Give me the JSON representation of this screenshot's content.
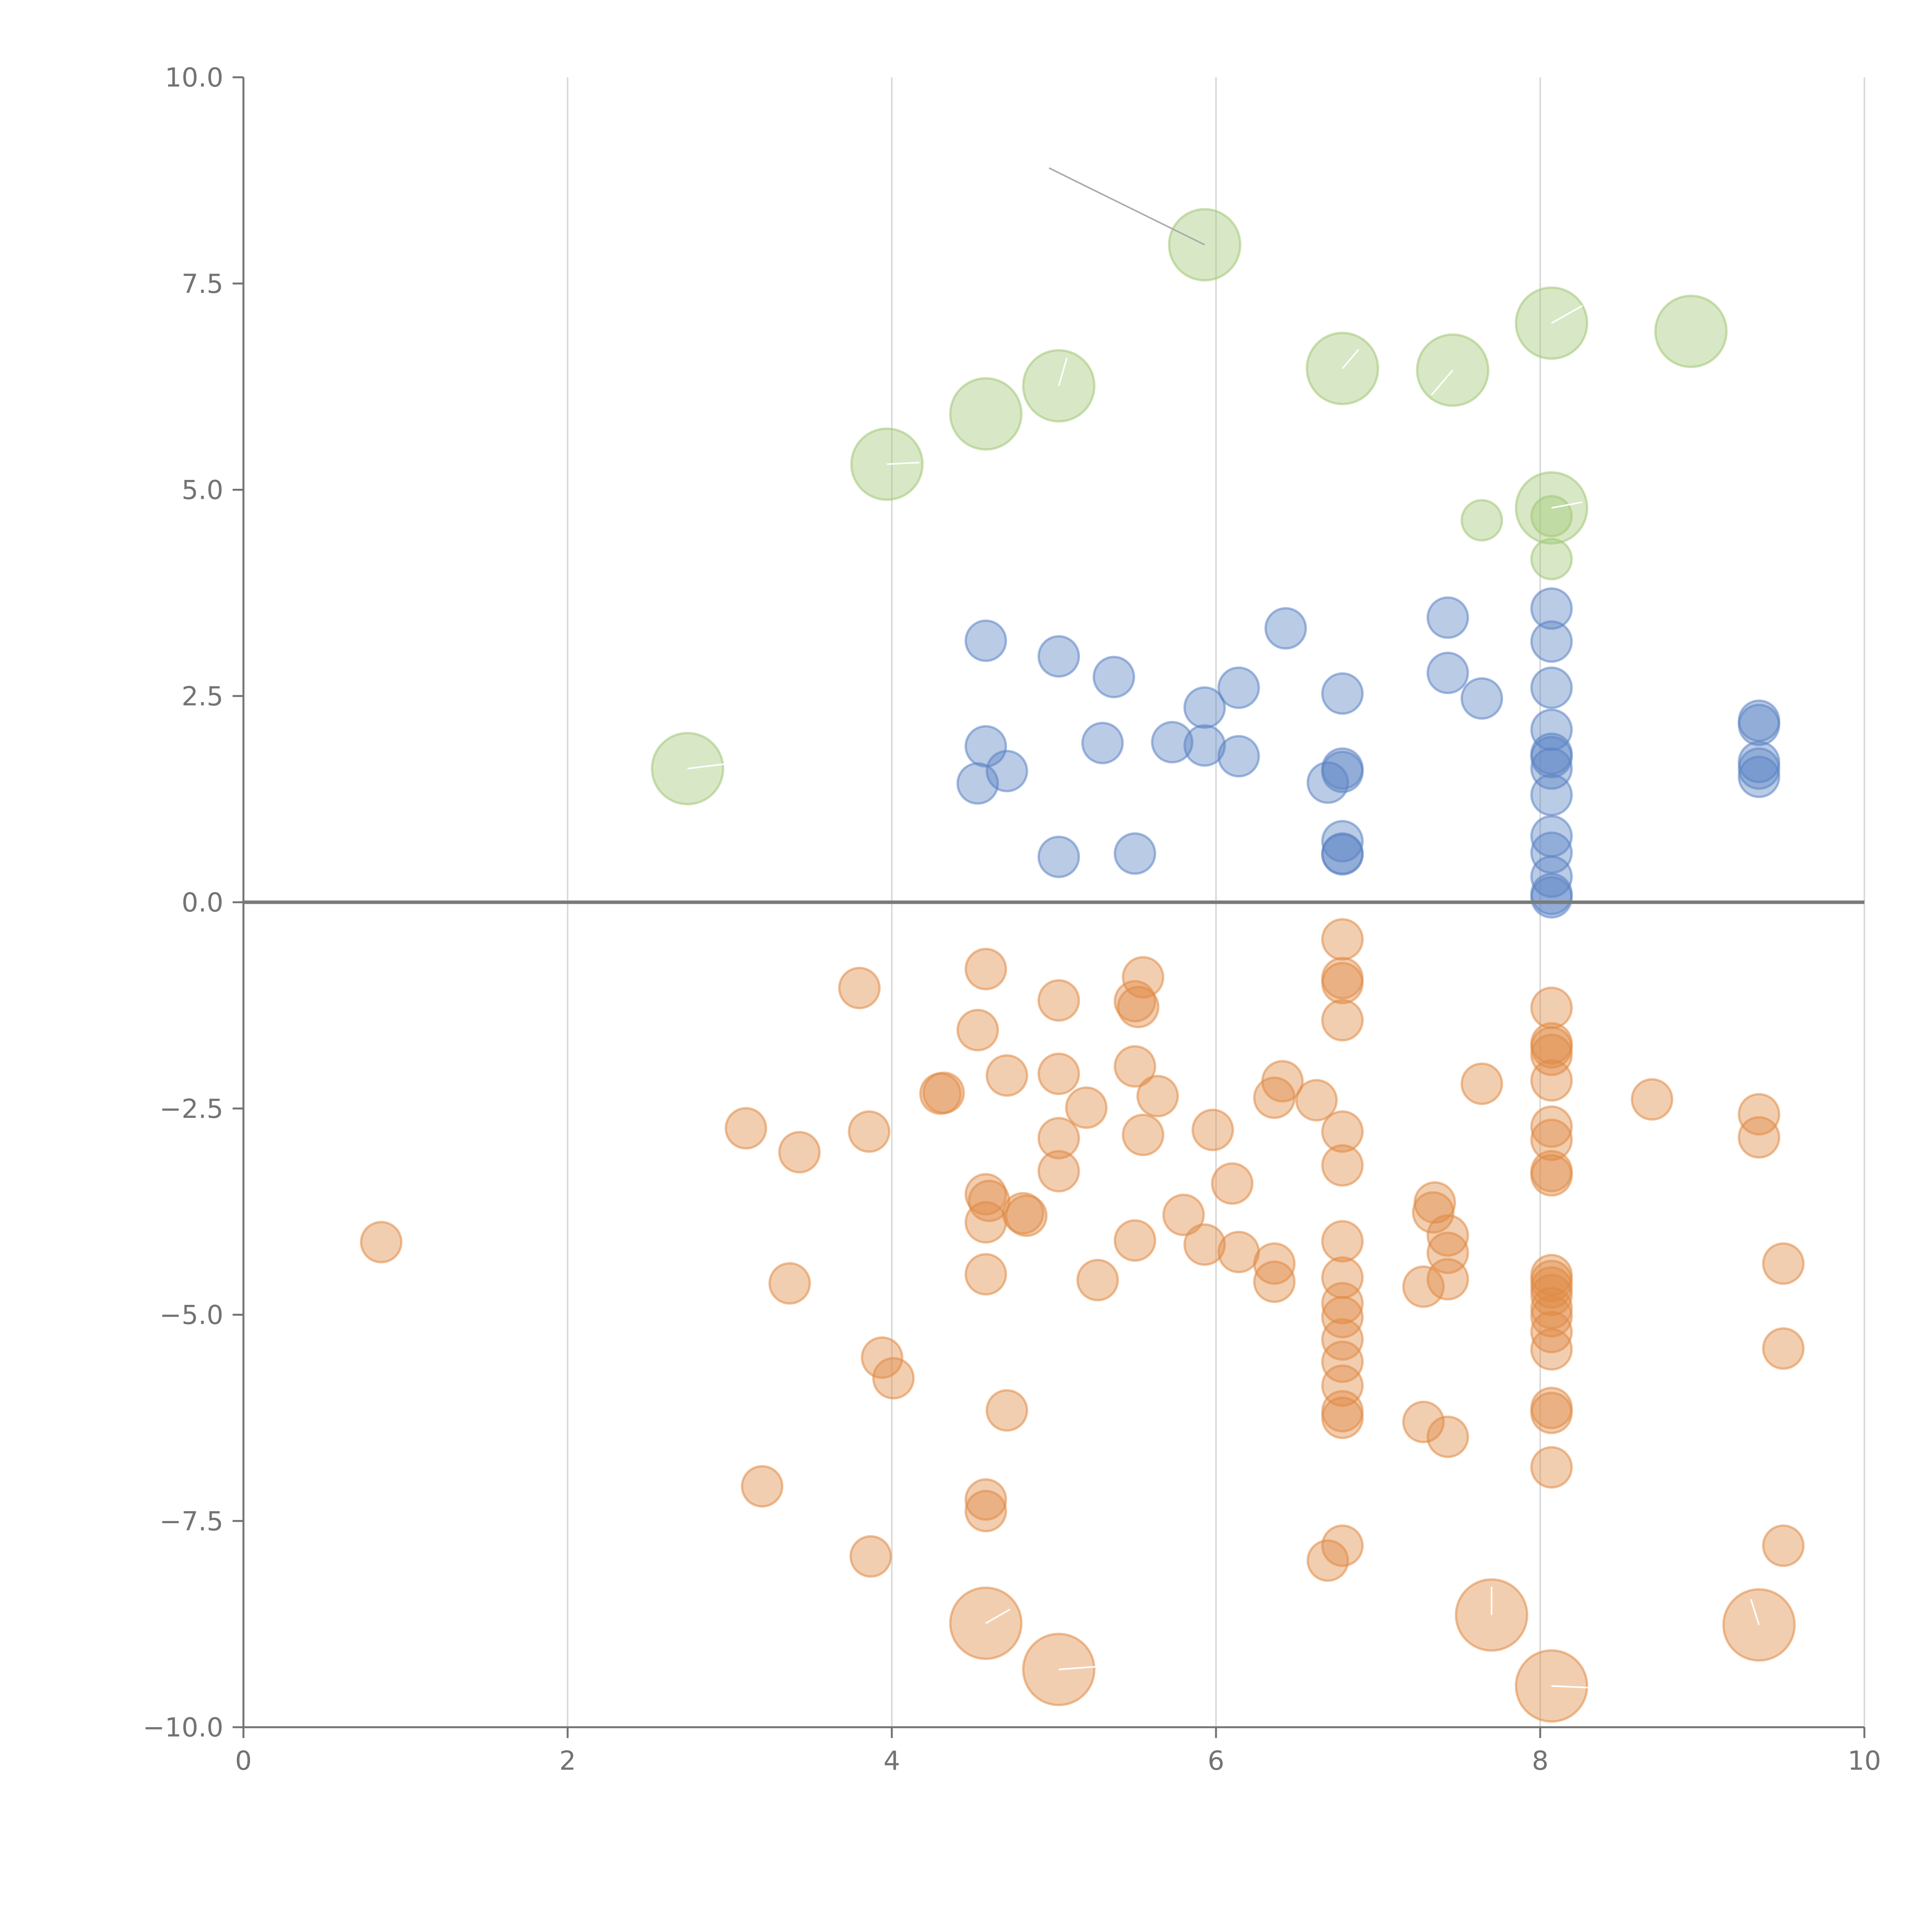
{
  "chart_data": {
    "type": "scatter",
    "title": "",
    "xlabel": "",
    "ylabel": "",
    "xlim": [
      0,
      10
    ],
    "ylim": [
      -10,
      10
    ],
    "grid": {
      "x": true,
      "y": false
    },
    "legend": "none",
    "x_ticks": [
      "0",
      "2",
      "4",
      "6",
      "8",
      "10"
    ],
    "y_ticks": [
      "10.0",
      "7.5",
      "5.0",
      "2.5",
      "0.0",
      "−2.5",
      "−5.0",
      "−7.5",
      "−10.0"
    ],
    "colors": {
      "blue": "#5b84c4",
      "orange": "#e08a44",
      "green": "#a3c777",
      "leader_dark": "#aaaaaa",
      "leader_light": "#ffffff"
    },
    "series": [
      {
        "color_key": "blue",
        "size": "small",
        "points": [
          [
            4.58,
            3.17
          ],
          [
            5.03,
            2.98
          ],
          [
            5.37,
            2.73
          ],
          [
            6.43,
            3.32
          ],
          [
            7.43,
            3.45
          ],
          [
            7.43,
            2.78
          ],
          [
            7.64,
            2.47
          ],
          [
            6.14,
            2.6
          ],
          [
            5.93,
            2.36
          ],
          [
            6.78,
            2.53
          ],
          [
            4.58,
            1.89
          ],
          [
            4.71,
            1.59
          ],
          [
            4.53,
            1.44
          ],
          [
            5.3,
            1.93
          ],
          [
            5.73,
            1.94
          ],
          [
            5.93,
            1.9
          ],
          [
            6.14,
            1.77
          ],
          [
            6.69,
            1.45
          ],
          [
            6.78,
            1.62
          ],
          [
            6.78,
            1.58
          ],
          [
            5.03,
            0.55
          ],
          [
            5.5,
            0.59
          ],
          [
            6.78,
            0.74
          ],
          [
            6.78,
            0.59
          ],
          [
            6.78,
            0.58
          ],
          [
            8.07,
            3.56
          ],
          [
            8.07,
            3.16
          ],
          [
            8.07,
            2.6
          ],
          [
            8.07,
            2.09
          ],
          [
            8.07,
            1.8
          ],
          [
            8.07,
            1.76
          ],
          [
            8.07,
            1.62
          ],
          [
            8.07,
            1.3
          ],
          [
            8.07,
            0.8
          ],
          [
            8.07,
            0.6
          ],
          [
            8.07,
            0.31
          ],
          [
            8.07,
            0.1
          ],
          [
            8.07,
            0.06
          ],
          [
            9.35,
            2.2
          ],
          [
            9.35,
            2.15
          ],
          [
            9.35,
            1.7
          ],
          [
            9.35,
            1.62
          ],
          [
            9.35,
            1.52
          ]
        ]
      },
      {
        "color_key": "orange",
        "size": "small",
        "points": [
          [
            0.85,
            -4.12
          ],
          [
            3.1,
            -2.74
          ],
          [
            3.37,
            -4.62
          ],
          [
            3.43,
            -3.03
          ],
          [
            3.2,
            -7.08
          ],
          [
            3.8,
            -1.04
          ],
          [
            3.86,
            -2.78
          ],
          [
            3.94,
            -5.52
          ],
          [
            4.01,
            -5.77
          ],
          [
            3.87,
            -7.93
          ],
          [
            4.3,
            -2.32
          ],
          [
            4.32,
            -2.31
          ],
          [
            4.58,
            -0.81
          ],
          [
            4.53,
            -1.55
          ],
          [
            4.58,
            -3.54
          ],
          [
            4.6,
            -3.62
          ],
          [
            4.58,
            -3.88
          ],
          [
            4.58,
            -4.51
          ],
          [
            4.58,
            -7.24
          ],
          [
            4.58,
            -7.38
          ],
          [
            4.71,
            -2.1
          ],
          [
            4.71,
            -6.16
          ],
          [
            4.81,
            -3.77
          ],
          [
            4.83,
            -3.8
          ],
          [
            5.03,
            -1.19
          ],
          [
            5.03,
            -2.08
          ],
          [
            5.03,
            -2.86
          ],
          [
            5.03,
            -3.26
          ],
          [
            5.2,
            -2.49
          ],
          [
            5.27,
            -4.58
          ],
          [
            5.5,
            -1.2
          ],
          [
            5.52,
            -1.27
          ],
          [
            5.55,
            -0.91
          ],
          [
            5.5,
            -1.99
          ],
          [
            5.64,
            -2.35
          ],
          [
            5.55,
            -2.82
          ],
          [
            5.5,
            -4.1
          ],
          [
            5.8,
            -3.79
          ],
          [
            5.93,
            -4.15
          ],
          [
            5.98,
            -2.76
          ],
          [
            6.1,
            -3.41
          ],
          [
            6.14,
            -4.24
          ],
          [
            6.36,
            -2.37
          ],
          [
            6.41,
            -2.17
          ],
          [
            6.36,
            -4.38
          ],
          [
            6.36,
            -4.6
          ],
          [
            6.62,
            -2.4
          ],
          [
            6.78,
            -0.45
          ],
          [
            6.78,
            -0.92
          ],
          [
            6.78,
            -0.98
          ],
          [
            6.78,
            -1.43
          ],
          [
            6.78,
            -2.78
          ],
          [
            6.78,
            -3.19
          ],
          [
            6.78,
            -4.11
          ],
          [
            6.78,
            -4.55
          ],
          [
            6.78,
            -4.86
          ],
          [
            6.78,
            -5.03
          ],
          [
            6.78,
            -5.3
          ],
          [
            6.78,
            -5.57
          ],
          [
            6.78,
            -5.86
          ],
          [
            6.78,
            -6.17
          ],
          [
            6.78,
            -6.25
          ],
          [
            6.69,
            -7.98
          ],
          [
            6.78,
            -7.8
          ],
          [
            7.35,
            -3.64
          ],
          [
            7.34,
            -3.76
          ],
          [
            7.43,
            -4.04
          ],
          [
            7.43,
            -4.25
          ],
          [
            7.43,
            -4.57
          ],
          [
            7.28,
            -4.66
          ],
          [
            7.28,
            -6.3
          ],
          [
            7.43,
            -6.48
          ],
          [
            7.64,
            -2.2
          ],
          [
            8.07,
            -1.28
          ],
          [
            8.07,
            -1.71
          ],
          [
            8.07,
            -1.76
          ],
          [
            8.07,
            -1.85
          ],
          [
            8.07,
            -2.16
          ],
          [
            8.07,
            -2.72
          ],
          [
            8.07,
            -2.88
          ],
          [
            8.07,
            -3.26
          ],
          [
            8.07,
            -3.31
          ],
          [
            8.07,
            -4.52
          ],
          [
            8.07,
            -4.59
          ],
          [
            8.07,
            -4.67
          ],
          [
            8.07,
            -4.76
          ],
          [
            8.07,
            -4.92
          ],
          [
            8.07,
            -5.02
          ],
          [
            8.07,
            -5.21
          ],
          [
            8.07,
            -5.42
          ],
          [
            8.07,
            -6.13
          ],
          [
            8.07,
            -6.19
          ],
          [
            8.07,
            -6.85
          ],
          [
            8.69,
            -2.39
          ],
          [
            9.35,
            -2.57
          ],
          [
            9.35,
            -2.85
          ],
          [
            9.5,
            -4.38
          ],
          [
            9.5,
            -5.41
          ],
          [
            9.5,
            -7.8
          ]
        ]
      },
      {
        "color_key": "green",
        "size": "small",
        "points": [
          [
            7.64,
            4.63
          ],
          [
            8.07,
            4.68
          ],
          [
            8.07,
            4.16
          ]
        ]
      },
      {
        "color_key": "green",
        "size": "large",
        "points": [
          [
            2.74,
            1.62
          ],
          [
            3.97,
            5.31
          ],
          [
            4.58,
            5.92
          ],
          [
            5.03,
            6.26
          ],
          [
            5.93,
            7.97
          ],
          [
            6.78,
            6.47
          ],
          [
            7.46,
            6.45
          ],
          [
            8.07,
            7.02
          ],
          [
            8.07,
            4.78
          ],
          [
            8.93,
            6.92
          ]
        ]
      },
      {
        "color_key": "orange",
        "size": "large",
        "points": [
          [
            4.58,
            -8.74
          ],
          [
            5.03,
            -9.3
          ],
          [
            7.7,
            -8.64
          ],
          [
            8.07,
            -9.5
          ],
          [
            9.35,
            -8.76
          ]
        ]
      }
    ],
    "leaders": [
      {
        "from": [
          5.93,
          7.97
        ],
        "to": [
          4.97,
          8.9
        ],
        "color_key": "leader_dark"
      },
      {
        "from": [
          2.74,
          1.62
        ],
        "to": [
          2.99,
          1.68
        ],
        "color_key": "leader_light"
      },
      {
        "from": [
          3.97,
          5.31
        ],
        "to": [
          4.17,
          5.33
        ],
        "color_key": "leader_light"
      },
      {
        "from": [
          5.03,
          6.26
        ],
        "to": [
          5.08,
          6.6
        ],
        "color_key": "leader_light"
      },
      {
        "from": [
          6.78,
          6.47
        ],
        "to": [
          6.88,
          6.7
        ],
        "color_key": "leader_light"
      },
      {
        "from": [
          7.46,
          6.45
        ],
        "to": [
          7.33,
          6.15
        ],
        "color_key": "leader_light"
      },
      {
        "from": [
          8.07,
          7.02
        ],
        "to": [
          8.26,
          7.23
        ],
        "color_key": "leader_light"
      },
      {
        "from": [
          8.07,
          4.78
        ],
        "to": [
          8.26,
          4.85
        ],
        "color_key": "leader_light"
      },
      {
        "from": [
          4.58,
          -8.74
        ],
        "to": [
          4.73,
          -8.57
        ],
        "color_key": "leader_light"
      },
      {
        "from": [
          5.03,
          -9.3
        ],
        "to": [
          5.3,
          -9.26
        ],
        "color_key": "leader_light"
      },
      {
        "from": [
          7.7,
          -8.64
        ],
        "to": [
          7.7,
          -8.3
        ],
        "color_key": "leader_light"
      },
      {
        "from": [
          8.07,
          -9.5
        ],
        "to": [
          8.3,
          -9.52
        ],
        "color_key": "leader_light"
      },
      {
        "from": [
          9.35,
          -8.76
        ],
        "to": [
          9.3,
          -8.45
        ],
        "color_key": "leader_light"
      }
    ]
  }
}
